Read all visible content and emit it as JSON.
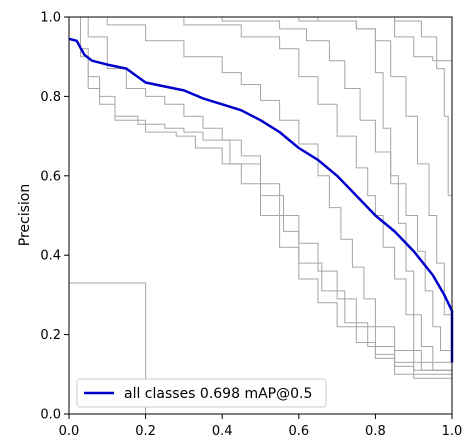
{
  "chart_data": {
    "type": "line",
    "title": "",
    "xlabel": "",
    "ylabel": "Precision",
    "xlim": [
      0,
      1
    ],
    "ylim": [
      0,
      1
    ],
    "xticks": [
      "0.0",
      "0.2",
      "0.4",
      "0.6",
      "0.8",
      "1.0"
    ],
    "yticks": [
      "0.0",
      "0.2",
      "0.4",
      "0.6",
      "0.8",
      "1.0"
    ],
    "grid": false,
    "legend": {
      "placement": "lower-left",
      "label": "all classes 0.698 mAP@0.5"
    },
    "main_series": {
      "name": "all classes 0.698 mAP@0.5",
      "color": "#0000cc",
      "points": [
        [
          0,
          0.945
        ],
        [
          0.02,
          0.94
        ],
        [
          0.04,
          0.905
        ],
        [
          0.06,
          0.89
        ],
        [
          0.1,
          0.88
        ],
        [
          0.15,
          0.87
        ],
        [
          0.2,
          0.835
        ],
        [
          0.25,
          0.825
        ],
        [
          0.3,
          0.815
        ],
        [
          0.35,
          0.795
        ],
        [
          0.4,
          0.78
        ],
        [
          0.45,
          0.765
        ],
        [
          0.5,
          0.74
        ],
        [
          0.55,
          0.71
        ],
        [
          0.6,
          0.67
        ],
        [
          0.65,
          0.64
        ],
        [
          0.7,
          0.6
        ],
        [
          0.75,
          0.55
        ],
        [
          0.8,
          0.5
        ],
        [
          0.85,
          0.46
        ],
        [
          0.9,
          0.41
        ],
        [
          0.95,
          0.35
        ],
        [
          0.98,
          0.3
        ],
        [
          1.0,
          0.26
        ],
        [
          1.0,
          0.13
        ]
      ]
    },
    "class_series": {
      "color": "#a6a6a6",
      "curves": [
        [
          [
            0,
            1.0
          ],
          [
            0.02,
            1.0
          ],
          [
            0.03,
            0.9
          ],
          [
            0.05,
            0.82
          ],
          [
            0.08,
            0.78
          ],
          [
            0.12,
            0.74
          ],
          [
            0.2,
            0.71
          ],
          [
            0.28,
            0.7
          ],
          [
            0.33,
            0.67
          ],
          [
            0.4,
            0.63
          ],
          [
            0.45,
            0.58
          ],
          [
            0.5,
            0.5
          ],
          [
            0.55,
            0.42
          ],
          [
            0.6,
            0.34
          ],
          [
            0.65,
            0.28
          ],
          [
            0.7,
            0.22
          ],
          [
            0.75,
            0.18
          ],
          [
            0.8,
            0.14
          ],
          [
            0.85,
            0.13
          ],
          [
            1.0,
            0.13
          ]
        ],
        [
          [
            0,
            1.0
          ],
          [
            0.03,
            0.92
          ],
          [
            0.05,
            0.85
          ],
          [
            0.08,
            0.8
          ],
          [
            0.12,
            0.75
          ],
          [
            0.18,
            0.73
          ],
          [
            0.25,
            0.72
          ],
          [
            0.3,
            0.71
          ],
          [
            0.35,
            0.69
          ],
          [
            0.42,
            0.63
          ],
          [
            0.5,
            0.55
          ],
          [
            0.56,
            0.46
          ],
          [
            0.6,
            0.38
          ],
          [
            0.66,
            0.31
          ],
          [
            0.72,
            0.23
          ],
          [
            0.78,
            0.17
          ],
          [
            0.85,
            0.12
          ],
          [
            0.9,
            0.11
          ],
          [
            1.0,
            0.1
          ]
        ],
        [
          [
            0,
            1.0
          ],
          [
            0.05,
            0.95
          ],
          [
            0.1,
            0.87
          ],
          [
            0.15,
            0.82
          ],
          [
            0.2,
            0.8
          ],
          [
            0.25,
            0.78
          ],
          [
            0.3,
            0.75
          ],
          [
            0.35,
            0.72
          ],
          [
            0.4,
            0.69
          ],
          [
            0.45,
            0.65
          ],
          [
            0.5,
            0.58
          ],
          [
            0.55,
            0.5
          ],
          [
            0.6,
            0.43
          ],
          [
            0.65,
            0.36
          ],
          [
            0.7,
            0.29
          ],
          [
            0.75,
            0.22
          ],
          [
            0.8,
            0.15
          ],
          [
            0.85,
            0.1
          ],
          [
            1.0,
            0.08
          ]
        ],
        [
          [
            0,
            1.0
          ],
          [
            0.1,
            0.98
          ],
          [
            0.2,
            0.94
          ],
          [
            0.3,
            0.9
          ],
          [
            0.4,
            0.86
          ],
          [
            0.45,
            0.83
          ],
          [
            0.5,
            0.79
          ],
          [
            0.55,
            0.74
          ],
          [
            0.6,
            0.68
          ],
          [
            0.65,
            0.6
          ],
          [
            0.68,
            0.52
          ],
          [
            0.71,
            0.44
          ],
          [
            0.74,
            0.37
          ],
          [
            0.77,
            0.29
          ],
          [
            0.8,
            0.22
          ],
          [
            0.85,
            0.16
          ],
          [
            0.9,
            0.09
          ],
          [
            1.0,
            0.07
          ]
        ],
        [
          [
            0,
            1.0
          ],
          [
            0.15,
            1.0
          ],
          [
            0.3,
            0.98
          ],
          [
            0.45,
            0.95
          ],
          [
            0.55,
            0.92
          ],
          [
            0.6,
            0.85
          ],
          [
            0.65,
            0.78
          ],
          [
            0.7,
            0.7
          ],
          [
            0.75,
            0.62
          ],
          [
            0.78,
            0.55
          ],
          [
            0.8,
            0.5
          ],
          [
            0.82,
            0.42
          ],
          [
            0.85,
            0.34
          ],
          [
            0.88,
            0.25
          ],
          [
            0.9,
            0.16
          ],
          [
            0.92,
            0.11
          ],
          [
            1.0,
            0.1
          ]
        ],
        [
          [
            0,
            1.0
          ],
          [
            0.2,
            1.0
          ],
          [
            0.4,
            0.99
          ],
          [
            0.55,
            0.97
          ],
          [
            0.62,
            0.94
          ],
          [
            0.68,
            0.89
          ],
          [
            0.72,
            0.82
          ],
          [
            0.76,
            0.74
          ],
          [
            0.8,
            0.66
          ],
          [
            0.84,
            0.58
          ],
          [
            0.88,
            0.5
          ],
          [
            0.91,
            0.41
          ],
          [
            0.93,
            0.31
          ],
          [
            0.95,
            0.22
          ],
          [
            0.97,
            0.16
          ],
          [
            1.0,
            0.14
          ]
        ],
        [
          [
            0,
            1.0
          ],
          [
            0.5,
            1.0
          ],
          [
            0.65,
            0.99
          ],
          [
            0.75,
            0.97
          ],
          [
            0.8,
            0.94
          ],
          [
            0.84,
            0.85
          ],
          [
            0.88,
            0.75
          ],
          [
            0.91,
            0.63
          ],
          [
            0.94,
            0.5
          ],
          [
            0.96,
            0.38
          ],
          [
            0.98,
            0.25
          ],
          [
            1.0,
            0.17
          ]
        ],
        [
          [
            0,
            1.0
          ],
          [
            0.7,
            1.0
          ],
          [
            0.85,
            0.99
          ],
          [
            0.92,
            0.95
          ],
          [
            0.96,
            0.87
          ],
          [
            0.98,
            0.75
          ],
          [
            0.99,
            0.55
          ],
          [
            1.0,
            0.3
          ]
        ],
        [
          [
            0,
            1.0
          ],
          [
            0.75,
            1.0
          ],
          [
            0.85,
            0.95
          ],
          [
            0.9,
            0.9
          ],
          [
            0.95,
            0.89
          ],
          [
            1.0,
            0.88
          ]
        ],
        [
          [
            0,
            1.0
          ],
          [
            0.3,
            1.0
          ],
          [
            0.6,
            0.99
          ],
          [
            0.75,
            0.97
          ],
          [
            0.8,
            0.86
          ],
          [
            0.82,
            0.72
          ],
          [
            0.84,
            0.6
          ],
          [
            0.86,
            0.48
          ],
          [
            0.88,
            0.36
          ],
          [
            0.9,
            0.25
          ],
          [
            0.92,
            0.17
          ],
          [
            0.95,
            0.11
          ],
          [
            1.0,
            0.1
          ]
        ],
        [
          [
            0,
            0.33
          ],
          [
            0.2,
            0.33
          ],
          [
            0.2,
            0.0
          ]
        ]
      ]
    }
  }
}
